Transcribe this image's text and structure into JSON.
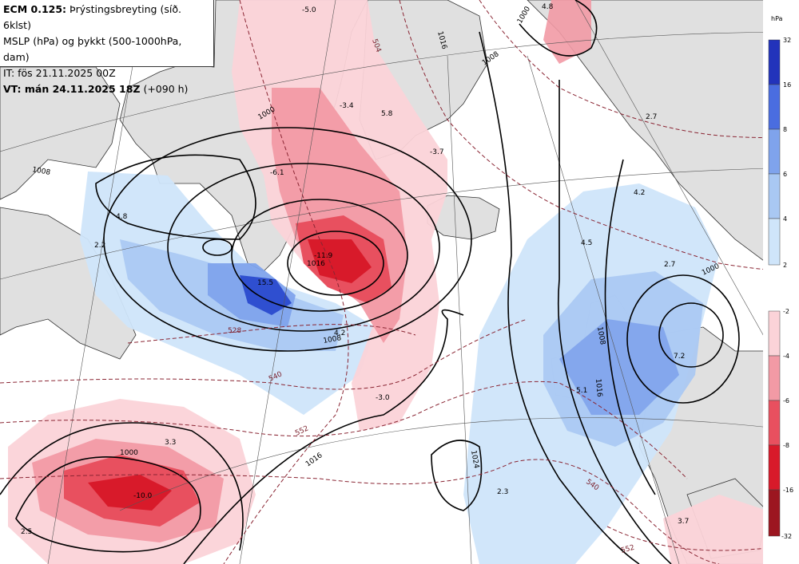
{
  "title": {
    "line1_bold": "ECM 0.125:",
    "line1_rest": " Þrýstingsbreyting (síð. 6klst)",
    "line2": "MSLP (hPa) og þykkt (500-1000hPa, dam)",
    "line3": "IT: fös 21.11.2025 00Z",
    "line4_bold": "VT: mán 24.11.2025 18Z",
    "line4_rest": " (+090 h)"
  },
  "legend": {
    "unit": "hPa",
    "rise_levels": [
      "32",
      "16",
      "8",
      "6",
      "4",
      "2"
    ],
    "rise_colors": [
      "#2233bb",
      "#4a6de0",
      "#7fa3ec",
      "#a9c8f3",
      "#cfe5fa"
    ],
    "fall_levels": [
      "-2",
      "-4",
      "-6",
      "-8",
      "-16",
      "-32"
    ],
    "fall_colors": [
      "#fbd3d8",
      "#f29aa5",
      "#e8505f",
      "#d81a2a",
      "#9c1620"
    ]
  },
  "isobars": [
    "1000",
    "1016",
    "1008",
    "1000",
    "1016",
    "1008",
    "1008",
    "1000",
    "1016",
    "1008",
    "1016",
    "1024",
    "1000"
  ],
  "thickness": [
    "504",
    "528",
    "540",
    "552",
    "540",
    "552"
  ],
  "values": [
    "-5.0",
    "4.8",
    "-3.4",
    "5.8",
    "-3.7",
    "-6.1",
    "4.8",
    "2.2",
    "15.5",
    "-11.9",
    "-3.0",
    "4.2",
    "3.3",
    "-10.0",
    "2.5",
    "4.2",
    "4.5",
    "2.7",
    "5.1",
    "7.2",
    "2.3",
    "3.7",
    "2.7"
  ],
  "colors": {
    "land": "#e0e0e0",
    "sea": "#ffffff",
    "coast": "#333333",
    "isobar": "#000000",
    "thickness": "#8a2533"
  }
}
